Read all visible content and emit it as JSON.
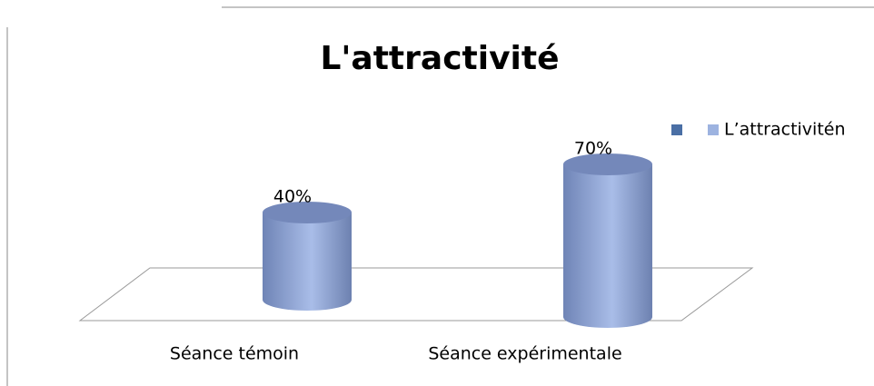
{
  "chart_data": {
    "type": "bar",
    "title": "L'attractivité",
    "categories": [
      "Séance témoin",
      "Séance expérimentale"
    ],
    "series": [
      {
        "name": "L’attractivitén",
        "color": "#9db3e0",
        "values": [
          40,
          70
        ],
        "value_labels": [
          "40%",
          "70%"
        ]
      }
    ]
  }
}
